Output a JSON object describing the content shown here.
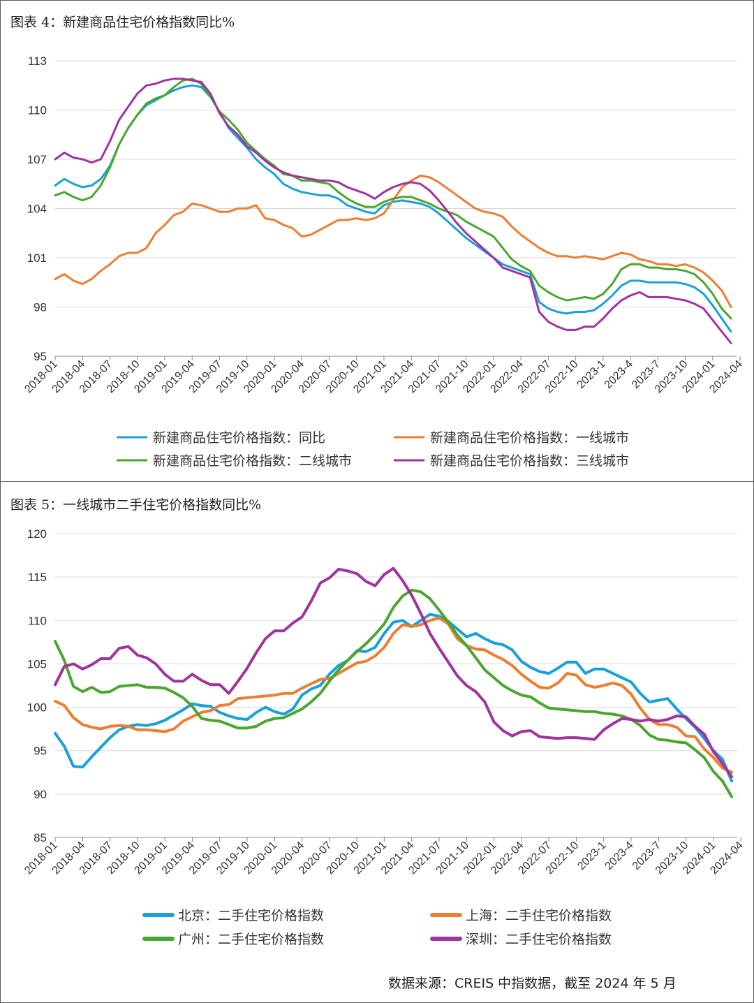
{
  "source_note": "数据来源：CREIS 中指数据，截至 2024 年 5 月",
  "chart_data": [
    {
      "type": "line",
      "title": "图表 4：新建商品住宅价格指数同比%",
      "ylim": [
        95,
        113
      ],
      "yticks": [
        95,
        98,
        101,
        104,
        107,
        110,
        113
      ],
      "xtick_labels": [
        "2018-01",
        "2018-04",
        "2018-07",
        "2018-10",
        "2019-01",
        "2019-04",
        "2019-07",
        "2019-10",
        "2020-01",
        "2020-04",
        "2020-07",
        "2020-10",
        "2021-01",
        "2021-04",
        "2021-07",
        "2021-10",
        "2022-01",
        "2022-04",
        "2022-07",
        "2022-10",
        "2023-1",
        "2023-4",
        "2023-7",
        "2023-10",
        "2024-01",
        "2024-04"
      ],
      "legend": [
        "新建商品住宅价格指数：同比",
        "新建商品住宅价格指数：一线城市",
        "新建商品住宅价格指数：二线城市",
        "新建商品住宅价格指数：三线城市"
      ],
      "series": [
        {
          "name": "新建商品住宅价格指数：同比",
          "color": "#1aa0d8",
          "values": [
            105.4,
            105.8,
            105.5,
            105.3,
            105.4,
            105.8,
            106.6,
            107.9,
            108.9,
            109.7,
            110.3,
            110.6,
            110.9,
            111.2,
            111.4,
            111.5,
            111.4,
            110.8,
            109.9,
            108.9,
            108.3,
            107.7,
            107.0,
            106.5,
            106.1,
            105.5,
            105.2,
            105.0,
            104.9,
            104.8,
            104.8,
            104.6,
            104.2,
            104.0,
            103.8,
            103.7,
            104.2,
            104.4,
            104.5,
            104.4,
            104.3,
            104.1,
            103.7,
            103.2,
            102.7,
            102.2,
            101.8,
            101.4,
            101.0,
            100.6,
            100.4,
            100.2,
            100.0,
            98.3,
            97.9,
            97.7,
            97.6,
            97.7,
            97.7,
            97.8,
            98.2,
            98.7,
            99.3,
            99.6,
            99.6,
            99.5,
            99.5,
            99.5,
            99.5,
            99.4,
            99.2,
            98.8,
            98.1,
            97.3,
            96.5
          ]
        },
        {
          "name": "新建商品住宅价格指数：一线城市",
          "color": "#ed7d31",
          "values": [
            99.7,
            100.0,
            99.6,
            99.4,
            99.7,
            100.2,
            100.6,
            101.1,
            101.3,
            101.3,
            101.6,
            102.5,
            103.0,
            103.6,
            103.8,
            104.3,
            104.2,
            104.0,
            103.8,
            103.8,
            104.0,
            104.0,
            104.2,
            103.4,
            103.3,
            103.0,
            102.8,
            102.3,
            102.4,
            102.7,
            103.0,
            103.3,
            103.3,
            103.4,
            103.3,
            103.4,
            103.7,
            104.5,
            105.3,
            105.7,
            106.0,
            105.9,
            105.6,
            105.2,
            104.8,
            104.4,
            104.0,
            103.8,
            103.7,
            103.5,
            102.9,
            102.4,
            102.0,
            101.6,
            101.3,
            101.1,
            101.1,
            101.0,
            101.1,
            101.0,
            100.9,
            101.1,
            101.3,
            101.2,
            100.9,
            100.8,
            100.6,
            100.6,
            100.5,
            100.6,
            100.4,
            100.1,
            99.6,
            99.0,
            98.0
          ]
        },
        {
          "name": "新建商品住宅价格指数：二线城市",
          "color": "#4aa62e",
          "values": [
            104.8,
            105.0,
            104.7,
            104.5,
            104.7,
            105.4,
            106.5,
            107.9,
            108.9,
            109.7,
            110.4,
            110.7,
            110.9,
            111.4,
            111.8,
            111.9,
            111.6,
            110.8,
            109.9,
            109.4,
            108.8,
            108.0,
            107.5,
            107.0,
            106.6,
            106.1,
            106.0,
            105.7,
            105.7,
            105.6,
            105.5,
            105.0,
            104.6,
            104.3,
            104.1,
            104.1,
            104.4,
            104.6,
            104.7,
            104.7,
            104.5,
            104.3,
            104.0,
            103.8,
            103.6,
            103.2,
            102.9,
            102.6,
            102.3,
            101.6,
            100.9,
            100.5,
            100.2,
            99.3,
            98.9,
            98.6,
            98.4,
            98.5,
            98.6,
            98.5,
            98.8,
            99.4,
            100.3,
            100.6,
            100.6,
            100.4,
            100.4,
            100.3,
            100.3,
            100.2,
            100.0,
            99.5,
            98.8,
            97.9,
            97.3
          ]
        },
        {
          "name": "新建商品住宅价格指数：三线城市",
          "color": "#a0339e",
          "values": [
            107.0,
            107.4,
            107.1,
            107.0,
            106.8,
            107.0,
            108.1,
            109.4,
            110.2,
            111.0,
            111.5,
            111.6,
            111.8,
            111.9,
            111.9,
            111.8,
            111.7,
            111.0,
            109.8,
            109.0,
            108.5,
            107.8,
            107.4,
            106.9,
            106.5,
            106.2,
            106.0,
            105.9,
            105.8,
            105.7,
            105.7,
            105.6,
            105.3,
            105.1,
            104.9,
            104.6,
            105.0,
            105.3,
            105.5,
            105.6,
            105.5,
            105.1,
            104.5,
            103.8,
            103.1,
            102.5,
            102.0,
            101.5,
            101.0,
            100.4,
            100.2,
            100.0,
            99.8,
            97.7,
            97.1,
            96.8,
            96.6,
            96.6,
            96.8,
            96.8,
            97.3,
            97.9,
            98.4,
            98.7,
            98.9,
            98.6,
            98.6,
            98.6,
            98.5,
            98.4,
            98.2,
            97.9,
            97.2,
            96.5,
            95.8
          ]
        }
      ]
    },
    {
      "type": "line",
      "title": "图表 5：一线城市二手住宅价格指数同比%",
      "ylim": [
        85,
        120
      ],
      "yticks": [
        85,
        90,
        95,
        100,
        105,
        110,
        115,
        120
      ],
      "xtick_labels": [
        "2018-01",
        "2018-04",
        "2018-07",
        "2018-10",
        "2019-01",
        "2019-04",
        "2019-07",
        "2019-10",
        "2020-01",
        "2020-04",
        "2020-07",
        "2020-10",
        "2021-01",
        "2021-04",
        "2021-07",
        "2021-10",
        "2022-01",
        "2022-04",
        "2022-07",
        "2022-10",
        "2023-1",
        "2023-4",
        "2023-7",
        "2023-10",
        "2024-01",
        "2024-04"
      ],
      "legend": [
        "北京：二手住宅价格指数",
        "上海：二手住宅价格指数",
        "广州：二手住宅价格指数",
        "深圳：二手住宅价格指数"
      ],
      "series": [
        {
          "name": "北京：二手住宅价格指数",
          "color": "#1aa0d8",
          "values": [
            97.0,
            95.5,
            93.2,
            93.1,
            94.3,
            95.4,
            96.5,
            97.4,
            97.8,
            98.0,
            97.9,
            98.1,
            98.5,
            99.1,
            99.7,
            100.4,
            100.2,
            100.1,
            99.4,
            99.0,
            98.7,
            98.6,
            99.4,
            100.0,
            99.5,
            99.2,
            99.8,
            101.4,
            102.1,
            102.5,
            103.8,
            104.8,
            105.4,
            106.5,
            106.4,
            106.9,
            108.5,
            109.8,
            110.0,
            109.3,
            110.0,
            110.7,
            110.5,
            109.9,
            109.0,
            108.1,
            108.5,
            107.9,
            107.4,
            107.2,
            106.6,
            105.3,
            104.6,
            104.1,
            103.9,
            104.5,
            105.2,
            105.2,
            103.9,
            104.4,
            104.4,
            103.9,
            103.4,
            102.9,
            101.6,
            100.6,
            100.8,
            101.0,
            99.8,
            98.7,
            97.7,
            96.4,
            95.0,
            94.0,
            91.5
          ]
        },
        {
          "name": "上海：二手住宅价格指数",
          "color": "#ed7d31",
          "values": [
            100.7,
            100.2,
            98.8,
            98.0,
            97.7,
            97.5,
            97.8,
            97.9,
            97.8,
            97.4,
            97.4,
            97.3,
            97.2,
            97.5,
            98.4,
            98.9,
            99.4,
            99.6,
            100.2,
            100.3,
            101.0,
            101.1,
            101.2,
            101.3,
            101.4,
            101.6,
            101.6,
            102.2,
            102.7,
            103.2,
            103.3,
            103.9,
            104.5,
            105.1,
            105.3,
            105.9,
            106.9,
            108.5,
            109.5,
            109.3,
            109.5,
            110.0,
            110.3,
            109.6,
            107.9,
            107.1,
            106.7,
            106.6,
            106.0,
            105.5,
            104.8,
            103.8,
            103.0,
            102.3,
            102.2,
            102.8,
            103.9,
            103.7,
            102.6,
            102.3,
            102.5,
            102.8,
            102.5,
            101.5,
            99.9,
            98.6,
            98.0,
            98.0,
            97.7,
            96.7,
            96.6,
            95.2,
            94.2,
            93.0,
            92.5
          ]
        },
        {
          "name": "广州：二手住宅价格指数",
          "color": "#4aa62e",
          "values": [
            107.6,
            105.4,
            102.4,
            101.8,
            102.3,
            101.7,
            101.8,
            102.4,
            102.5,
            102.6,
            102.3,
            102.3,
            102.2,
            101.7,
            101.1,
            100.1,
            98.7,
            98.5,
            98.4,
            98.0,
            97.6,
            97.6,
            97.8,
            98.4,
            98.7,
            98.8,
            99.3,
            99.8,
            100.6,
            101.6,
            103.0,
            104.3,
            105.4,
            106.4,
            107.3,
            108.4,
            109.6,
            111.5,
            112.8,
            113.5,
            113.3,
            112.5,
            111.2,
            109.8,
            108.3,
            107.1,
            105.7,
            104.3,
            103.4,
            102.5,
            101.9,
            101.4,
            101.2,
            100.5,
            99.9,
            99.8,
            99.7,
            99.6,
            99.5,
            99.5,
            99.3,
            99.2,
            99.0,
            98.6,
            97.9,
            96.8,
            96.3,
            96.2,
            96.0,
            95.9,
            95.1,
            94.2,
            92.6,
            91.5,
            89.7
          ]
        },
        {
          "name": "深圳：二手住宅价格指数",
          "color": "#a0339e",
          "values": [
            102.6,
            104.7,
            105.0,
            104.4,
            104.9,
            105.6,
            105.6,
            106.8,
            107.0,
            106.0,
            105.7,
            105.0,
            103.8,
            103.0,
            103.0,
            103.8,
            103.1,
            102.6,
            102.6,
            101.6,
            103.0,
            104.5,
            106.3,
            107.9,
            108.8,
            108.8,
            109.7,
            110.4,
            112.2,
            114.3,
            114.9,
            115.9,
            115.7,
            115.4,
            114.5,
            114.0,
            115.3,
            116.0,
            114.6,
            112.9,
            110.8,
            108.5,
            106.8,
            105.2,
            103.6,
            102.5,
            101.8,
            100.6,
            98.3,
            97.3,
            96.7,
            97.2,
            97.3,
            96.6,
            96.5,
            96.4,
            96.5,
            96.5,
            96.4,
            96.3,
            97.4,
            98.1,
            98.7,
            98.6,
            98.4,
            98.6,
            98.4,
            98.6,
            99.0,
            98.9,
            97.8,
            96.9,
            94.9,
            93.5,
            92.0
          ]
        }
      ]
    }
  ]
}
